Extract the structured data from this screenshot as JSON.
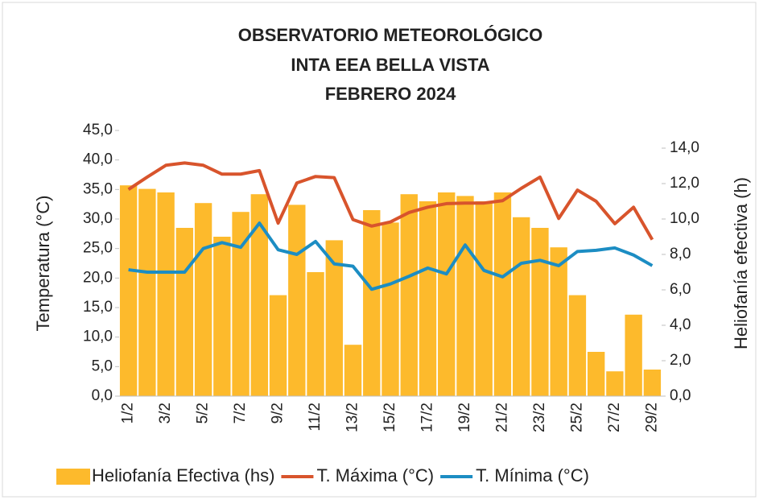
{
  "chart_data": {
    "type": "bar-line",
    "title": [
      "OBSERVATORIO METEOROLÓGICO",
      "INTA EEA BELLA VISTA",
      "FEBRERO 2024"
    ],
    "y_label": "Temperatura (°C)",
    "y2_label": "Heliofanía efectiva (h)",
    "categories": [
      "1/2",
      null,
      "3/2",
      null,
      "5/2",
      null,
      "7/2",
      null,
      "9/2",
      null,
      "11/2",
      null,
      "13/2",
      null,
      "15/2",
      null,
      "17/2",
      null,
      "19/2",
      null,
      "21/2",
      null,
      "23/2",
      null,
      "25/2",
      null,
      "27/2",
      null,
      "29/2"
    ],
    "series": [
      {
        "name": "Heliofanía Efectiva (hs)",
        "kind": "bar",
        "axis": "y2",
        "color": "#FDBA2C",
        "values": [
          11.9,
          11.7,
          11.5,
          9.5,
          10.9,
          9.0,
          10.4,
          11.4,
          5.7,
          10.8,
          7.0,
          8.8,
          2.9,
          10.5,
          9.8,
          11.4,
          11.0,
          11.5,
          11.3,
          11.0,
          11.5,
          10.1,
          9.5,
          8.4,
          5.7,
          2.5,
          1.4,
          4.6,
          1.5
        ]
      },
      {
        "name": "T. Máxima (°C)",
        "kind": "line",
        "color": "#D8542C",
        "values": [
          35.0,
          37.1,
          39.1,
          39.5,
          39.1,
          37.6,
          37.6,
          38.2,
          29.3,
          36.1,
          37.2,
          37.0,
          29.9,
          28.8,
          29.5,
          31.1,
          32.0,
          32.6,
          32.7,
          32.7,
          33.1,
          35.2,
          37.1,
          30.1,
          34.9,
          33.0,
          29.2,
          32.0,
          26.5
        ]
      },
      {
        "name": "T. Mínima (°C)",
        "kind": "line",
        "color": "#1C8DC3",
        "values": [
          21.4,
          21.0,
          21.0,
          21.0,
          25.0,
          26.0,
          25.2,
          29.3,
          24.8,
          24.0,
          26.2,
          22.4,
          22.0,
          18.1,
          19.0,
          20.3,
          21.7,
          20.7,
          25.6,
          21.3,
          20.2,
          22.5,
          23.0,
          22.1,
          24.5,
          24.7,
          25.1,
          23.9,
          22.1
        ]
      }
    ],
    "ylim": [
      0,
      45
    ],
    "yticks": [
      {
        "value": 0,
        "label": "0,0"
      },
      {
        "value": 5,
        "label": "5,0"
      },
      {
        "value": 10,
        "label": "10,0"
      },
      {
        "value": 15,
        "label": "15,0"
      },
      {
        "value": 20,
        "label": "20,0"
      },
      {
        "value": 25,
        "label": "25,0"
      },
      {
        "value": 30,
        "label": "30,0"
      },
      {
        "value": 35,
        "label": "35,0"
      },
      {
        "value": 40,
        "label": "40,0"
      },
      {
        "value": 45,
        "label": "45,0"
      }
    ],
    "y2lim": [
      0,
      15
    ],
    "y2ticks": [
      {
        "value": 0,
        "label": "0,0"
      },
      {
        "value": 2,
        "label": "2,0"
      },
      {
        "value": 4,
        "label": "4,0"
      },
      {
        "value": 6,
        "label": "6,0"
      },
      {
        "value": 8,
        "label": "8,0"
      },
      {
        "value": 10,
        "label": "10,0"
      },
      {
        "value": 12,
        "label": "12,0"
      },
      {
        "value": 14,
        "label": "14,0"
      }
    ],
    "legend": "bottom"
  }
}
